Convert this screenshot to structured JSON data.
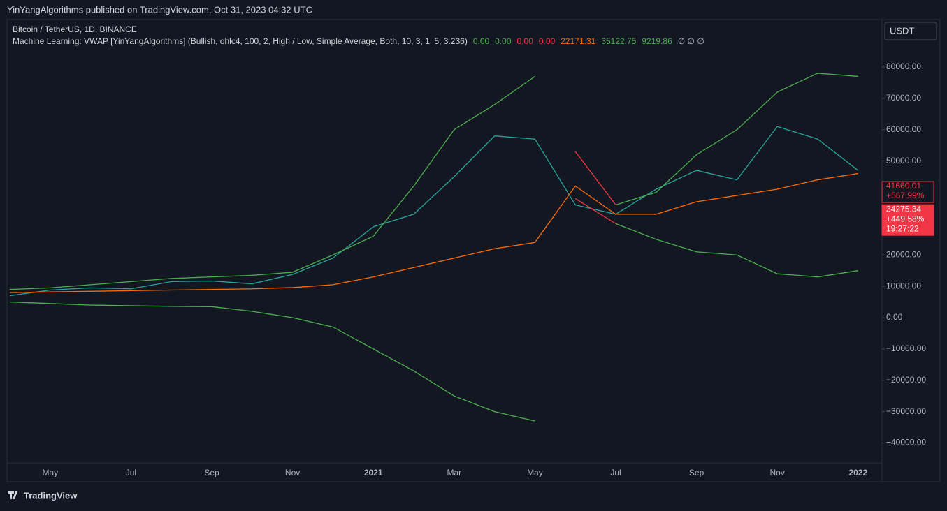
{
  "header": {
    "published": "YinYangAlgorithms published on TradingView.com, Oct 31, 2023 04:32 UTC"
  },
  "footer": {
    "brand": "TradingView"
  },
  "currency_button": "USDT",
  "chart_data": {
    "type": "line",
    "title": "Bitcoin / TetherUS, 1D, BINANCE",
    "subtitle": "Machine Learning: VWAP [YinYangAlgorithms] (Bullish, ohlc4, 100, 2, High / Low, Simple Average, Both, 10, 3, 1, 5, 3.236)",
    "indicator_values": [
      {
        "text": "0.00",
        "color": "#4caf50"
      },
      {
        "text": "0.00",
        "color": "#4caf50"
      },
      {
        "text": "0.00",
        "color": "#f23645"
      },
      {
        "text": "0.00",
        "color": "#f23645"
      },
      {
        "text": "22171.31",
        "color": "#ff6d00"
      },
      {
        "text": "35122.75",
        "color": "#4caf50"
      },
      {
        "text": "9219.86",
        "color": "#4caf50"
      },
      {
        "text": "∅  ∅  ∅",
        "color": "#b2b5be"
      }
    ],
    "categories": [
      null,
      "May",
      null,
      "Jul",
      null,
      "Sep",
      null,
      "Nov",
      null,
      "2021",
      null,
      "Mar",
      null,
      "May",
      null,
      "Jul",
      null,
      "Sep",
      null,
      "Nov",
      null,
      "2022"
    ],
    "series": [
      {
        "color": "#26a69a",
        "values": [
          7000,
          8800,
          9500,
          9200,
          11500,
          11700,
          10800,
          13800,
          19000,
          29000,
          33000,
          45000,
          58000,
          57000,
          36000,
          33000,
          41000,
          47000,
          44000,
          61000,
          57000,
          47000
        ]
      },
      {
        "color": "#ff6d00",
        "values": [
          8000,
          8200,
          8400,
          8600,
          8800,
          9000,
          9200,
          9600,
          10500,
          13000,
          16000,
          19000,
          22000,
          24000,
          42000,
          33000,
          33000,
          37000,
          39000,
          41000,
          44000,
          46000
        ]
      },
      {
        "color": "#4caf50",
        "values": [
          9000,
          9500,
          10500,
          11500,
          12500,
          13000,
          13500,
          14500,
          20000,
          26000,
          42000,
          60000,
          68000,
          77000,
          null,
          36000,
          40000,
          52000,
          60000,
          72000,
          78000,
          77000
        ]
      },
      {
        "color": "#4caf50",
        "values": [
          5000,
          4500,
          4000,
          3800,
          3600,
          3500,
          2000,
          0,
          -3000,
          -10000,
          -17000,
          -25000,
          -30000,
          -33000,
          null,
          30000,
          25000,
          21000,
          20000,
          14000,
          13000,
          15000
        ]
      },
      {
        "color": "#f23645",
        "values": [
          null,
          null,
          null,
          null,
          null,
          null,
          null,
          null,
          null,
          null,
          null,
          null,
          null,
          null,
          53000,
          36000,
          null,
          null,
          null,
          null,
          null,
          null
        ]
      },
      {
        "color": "#f23645",
        "values": [
          null,
          null,
          null,
          null,
          null,
          null,
          null,
          null,
          null,
          null,
          null,
          null,
          null,
          null,
          38000,
          30000,
          null,
          null,
          null,
          null,
          null,
          null
        ]
      }
    ],
    "ylim": [
      -46350,
      95820
    ],
    "yticks": [
      {
        "value": 80000,
        "label": "80000.00"
      },
      {
        "value": 70000,
        "label": "70000.00"
      },
      {
        "value": 60000,
        "label": "60000.00"
      },
      {
        "value": 50000,
        "label": "50000.00"
      },
      {
        "value": 20000,
        "label": "20000.00"
      },
      {
        "value": 10000,
        "label": "10000.00"
      },
      {
        "value": 0,
        "label": "0.00"
      },
      {
        "value": -10000,
        "label": "−10000.00"
      },
      {
        "value": -20000,
        "label": "−20000.00"
      },
      {
        "value": -30000,
        "label": "−30000.00"
      },
      {
        "value": -40000,
        "label": "−40000.00"
      }
    ],
    "price_labels": [
      {
        "value": 41660.01,
        "label": "41660.01",
        "change": "+567.99%",
        "color": "#f23645",
        "filled": false
      },
      {
        "value": 34275.34,
        "label": "34275.34",
        "change": "+449.58%",
        "timer": "19:27:22",
        "color": "#f23645",
        "filled": true
      }
    ]
  }
}
